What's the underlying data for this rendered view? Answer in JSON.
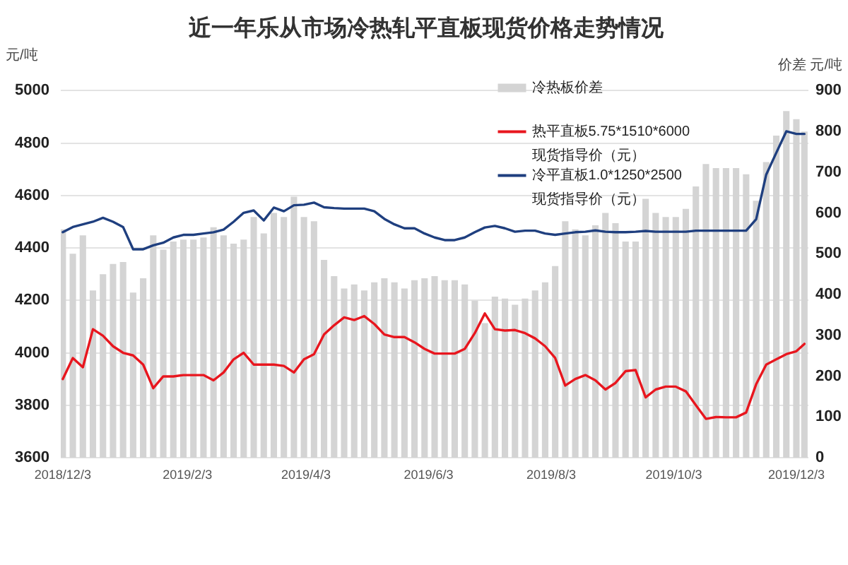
{
  "chart_data": {
    "type": "line",
    "title": "近一年乐从市场冷热轧平直板现货价格走势情况",
    "ylabel": "元/吨",
    "y2label": "价差 元/吨",
    "x": [
      "2018-12-03",
      "2018-12-08",
      "2018-12-13",
      "2018-12-18",
      "2018-12-23",
      "2018-12-28",
      "2019-01-02",
      "2019-01-07",
      "2019-01-12",
      "2019-01-17",
      "2019-01-22",
      "2019-01-27",
      "2019-02-01",
      "2019-02-06",
      "2019-02-11",
      "2019-02-16",
      "2019-02-21",
      "2019-02-26",
      "2019-03-03",
      "2019-03-08",
      "2019-03-13",
      "2019-03-18",
      "2019-03-23",
      "2019-03-28",
      "2019-04-02",
      "2019-04-07",
      "2019-04-12",
      "2019-04-17",
      "2019-04-22",
      "2019-04-27",
      "2019-05-02",
      "2019-05-07",
      "2019-05-12",
      "2019-05-17",
      "2019-05-22",
      "2019-05-27",
      "2019-06-01",
      "2019-06-06",
      "2019-06-11",
      "2019-06-16",
      "2019-06-21",
      "2019-06-26",
      "2019-07-01",
      "2019-07-06",
      "2019-07-11",
      "2019-07-16",
      "2019-07-21",
      "2019-07-26",
      "2019-07-31",
      "2019-08-05",
      "2019-08-10",
      "2019-08-15",
      "2019-08-20",
      "2019-08-25",
      "2019-08-30",
      "2019-09-04",
      "2019-09-09",
      "2019-09-14",
      "2019-09-19",
      "2019-09-24",
      "2019-09-29",
      "2019-10-04",
      "2019-10-09",
      "2019-10-14",
      "2019-10-19",
      "2019-10-24",
      "2019-10-29",
      "2019-11-03",
      "2019-11-08",
      "2019-11-13",
      "2019-11-18",
      "2019-11-23",
      "2019-11-28",
      "2019-12-03",
      "2019-12-07"
    ],
    "xlim": [
      "2018-12-02",
      "2019-12-09"
    ],
    "xticks": [
      {
        "value": "2018-12-03",
        "label": "2018/12/3"
      },
      {
        "value": "2019-02-03",
        "label": "2019/2/3"
      },
      {
        "value": "2019-04-03",
        "label": "2019/4/3"
      },
      {
        "value": "2019-06-03",
        "label": "2019/6/3"
      },
      {
        "value": "2019-08-03",
        "label": "2019/8/3"
      },
      {
        "value": "2019-10-03",
        "label": "2019/10/3"
      },
      {
        "value": "2019-12-03",
        "label": "2019/12/3"
      }
    ],
    "ylim": [
      3600,
      5000
    ],
    "yticks": [
      3600,
      3800,
      4000,
      4200,
      4400,
      4600,
      4800,
      5000
    ],
    "y2lim": [
      0,
      900
    ],
    "y2ticks": [
      0,
      100,
      200,
      300,
      400,
      500,
      600,
      700,
      800,
      900
    ],
    "series": [
      {
        "name": "冷热板价差",
        "type": "bar",
        "axis": "y2",
        "color": "#d4d4d4",
        "values": [
          560,
          500,
          545,
          410,
          450,
          475,
          480,
          405,
          440,
          545,
          510,
          530,
          535,
          535,
          540,
          565,
          545,
          525,
          535,
          590,
          550,
          600,
          590,
          640,
          590,
          580,
          485,
          445,
          415,
          425,
          410,
          430,
          440,
          430,
          415,
          435,
          440,
          445,
          435,
          435,
          425,
          385,
          330,
          395,
          390,
          375,
          390,
          410,
          430,
          470,
          580,
          560,
          545,
          570,
          600,
          575,
          530,
          530,
          635,
          600,
          590,
          590,
          610,
          665,
          720,
          710,
          710,
          710,
          695,
          630,
          725,
          790,
          850,
          830,
          800
        ]
      },
      {
        "name": "热平直板5.75*1510*6000\n现货指导价（元）",
        "color": "#e8161e",
        "values": [
          3900,
          3980,
          3945,
          4090,
          4065,
          4025,
          4000,
          3990,
          3955,
          3865,
          3910,
          3910,
          3915,
          3915,
          3915,
          3895,
          3925,
          3975,
          4000,
          3955,
          3955,
          3955,
          3950,
          3925,
          3975,
          3995,
          4070,
          4105,
          4135,
          4125,
          4140,
          4110,
          4070,
          4060,
          4060,
          4040,
          4015,
          3997,
          3997,
          3997,
          4015,
          4075,
          4150,
          4090,
          4085,
          4087,
          4075,
          4055,
          4025,
          3980,
          3875,
          3900,
          3915,
          3895,
          3860,
          3885,
          3930,
          3934,
          3830,
          3860,
          3871,
          3871,
          3853,
          3800,
          3748,
          3755,
          3754,
          3754,
          3772,
          3880,
          3955,
          3975,
          3995,
          4006,
          4034
        ]
      },
      {
        "name": "冷平直板1.0*1250*2500\n现货指导价（元）",
        "color": "#1f3f7f",
        "values": [
          4460,
          4480,
          4490,
          4500,
          4515,
          4500,
          4480,
          4395,
          4395,
          4410,
          4420,
          4440,
          4450,
          4450,
          4455,
          4460,
          4470,
          4500,
          4534,
          4543,
          4505,
          4554,
          4540,
          4563,
          4565,
          4573,
          4555,
          4552,
          4550,
          4550,
          4550,
          4540,
          4511,
          4490,
          4475,
          4475,
          4455,
          4440,
          4430,
          4430,
          4440,
          4460,
          4478,
          4484,
          4475,
          4462,
          4466,
          4466,
          4455,
          4450,
          4455,
          4460,
          4462,
          4467,
          4462,
          4460,
          4460,
          4462,
          4465,
          4462,
          4462,
          4462,
          4462,
          4466,
          4466,
          4466,
          4466,
          4466,
          4466,
          4510,
          4680,
          4763,
          4845,
          4835,
          4835
        ]
      }
    ],
    "grid": "y",
    "legend": "top right",
    "marker": "none"
  }
}
